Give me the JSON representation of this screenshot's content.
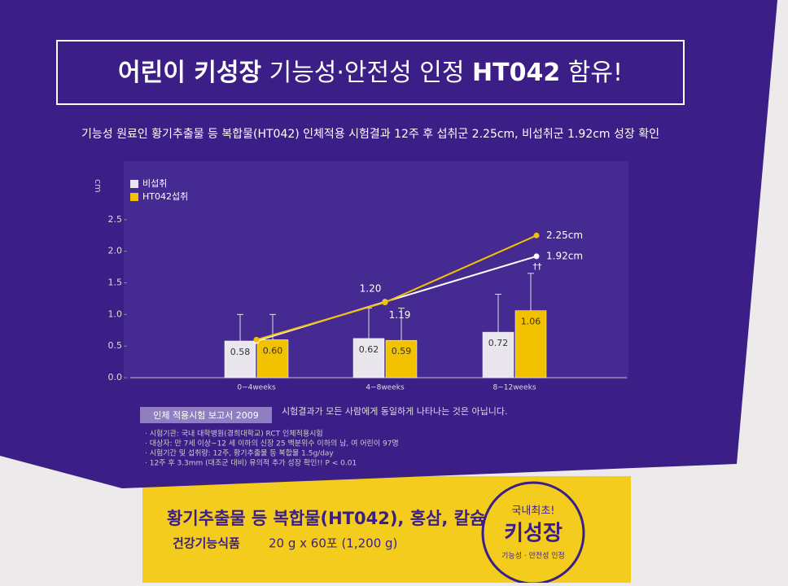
{
  "header": {
    "title": [
      "어린이 키성장",
      "기능성·안전성 인정",
      "HT042",
      "함유!"
    ],
    "subtitle": "기능성 원료인 황기추출물 등 복합물(HT042) 인체적용 시험결과 12주 후 섭취군 2.25cm, 비섭취군 1.92cm 성장 확인"
  },
  "chart_data": {
    "type": "bar",
    "y_label": "cm",
    "categories": [
      "0~4weeks",
      "4~8weeks",
      "8~12weeks"
    ],
    "ylim": [
      0,
      3.4
    ],
    "yticks": [
      {
        "value": 0,
        "label": "0.0"
      },
      {
        "value": 0.5,
        "label": "0.5"
      },
      {
        "value": 1,
        "label": "1.0"
      },
      {
        "value": 1.5,
        "label": "1.5"
      },
      {
        "value": 2,
        "label": "2.0"
      },
      {
        "value": 2.5,
        "label": "2.5"
      }
    ],
    "series": [
      {
        "name": "비섭취",
        "type": "bar",
        "color": "#e9e6ee",
        "values": [
          0.58,
          0.62,
          0.72
        ],
        "value_labels": [
          "0.58",
          "0.62",
          "0.72"
        ],
        "errors": [
          0.42,
          0.48,
          0.6
        ]
      },
      {
        "name": "HT042섭취",
        "type": "bar",
        "color": "#f2c200",
        "values": [
          0.6,
          0.59,
          1.06
        ],
        "value_labels": [
          "0.60",
          "0.59",
          "1.06"
        ],
        "errors": [
          0.4,
          0.51,
          0.59
        ]
      },
      {
        "name": "비섭취",
        "type": "line",
        "color": "#ffffff",
        "values": [
          0.58,
          1.2,
          1.92
        ],
        "value_labels": [
          null,
          "1.20",
          "1.92cm"
        ]
      },
      {
        "name": "HT042섭취",
        "type": "line",
        "color": "#f2c200",
        "values": [
          0.6,
          1.19,
          2.25
        ],
        "value_labels": [
          null,
          "1.19",
          "2.25cm"
        ]
      }
    ],
    "annotation": "††"
  },
  "footer": {
    "report": "인체 적용시험 보고서 2009",
    "disclaimer": "시험결과가 모든 사람에게 동일하게 나타나는 것은 아닙니다.",
    "notes": [
      "· 시험기관: 국내 대학병원(경희대학교) RCT 인체적용시험",
      "· 대상자: 만 7세 이상~12 세 이하의 신장 25 백분위수 이하의 남, 여 어린이 97명",
      "· 시험기간 및 섭취량: 12주, 황기추출물 등 복합물 1.5g/day",
      "· 12주 후 3.3mm (대조군 대비) 유의적 추가 성장 확인!! P < 0.01"
    ]
  },
  "box": {
    "product": "황기추출물 등 복합물(HT042), 홍삼, 칼슘",
    "category": "건강기능식품",
    "quantity": "20 g x 60포 (1,200 g)",
    "badge": [
      "국내최초!",
      "키성장",
      "기능성 · 안전성 인정"
    ]
  }
}
